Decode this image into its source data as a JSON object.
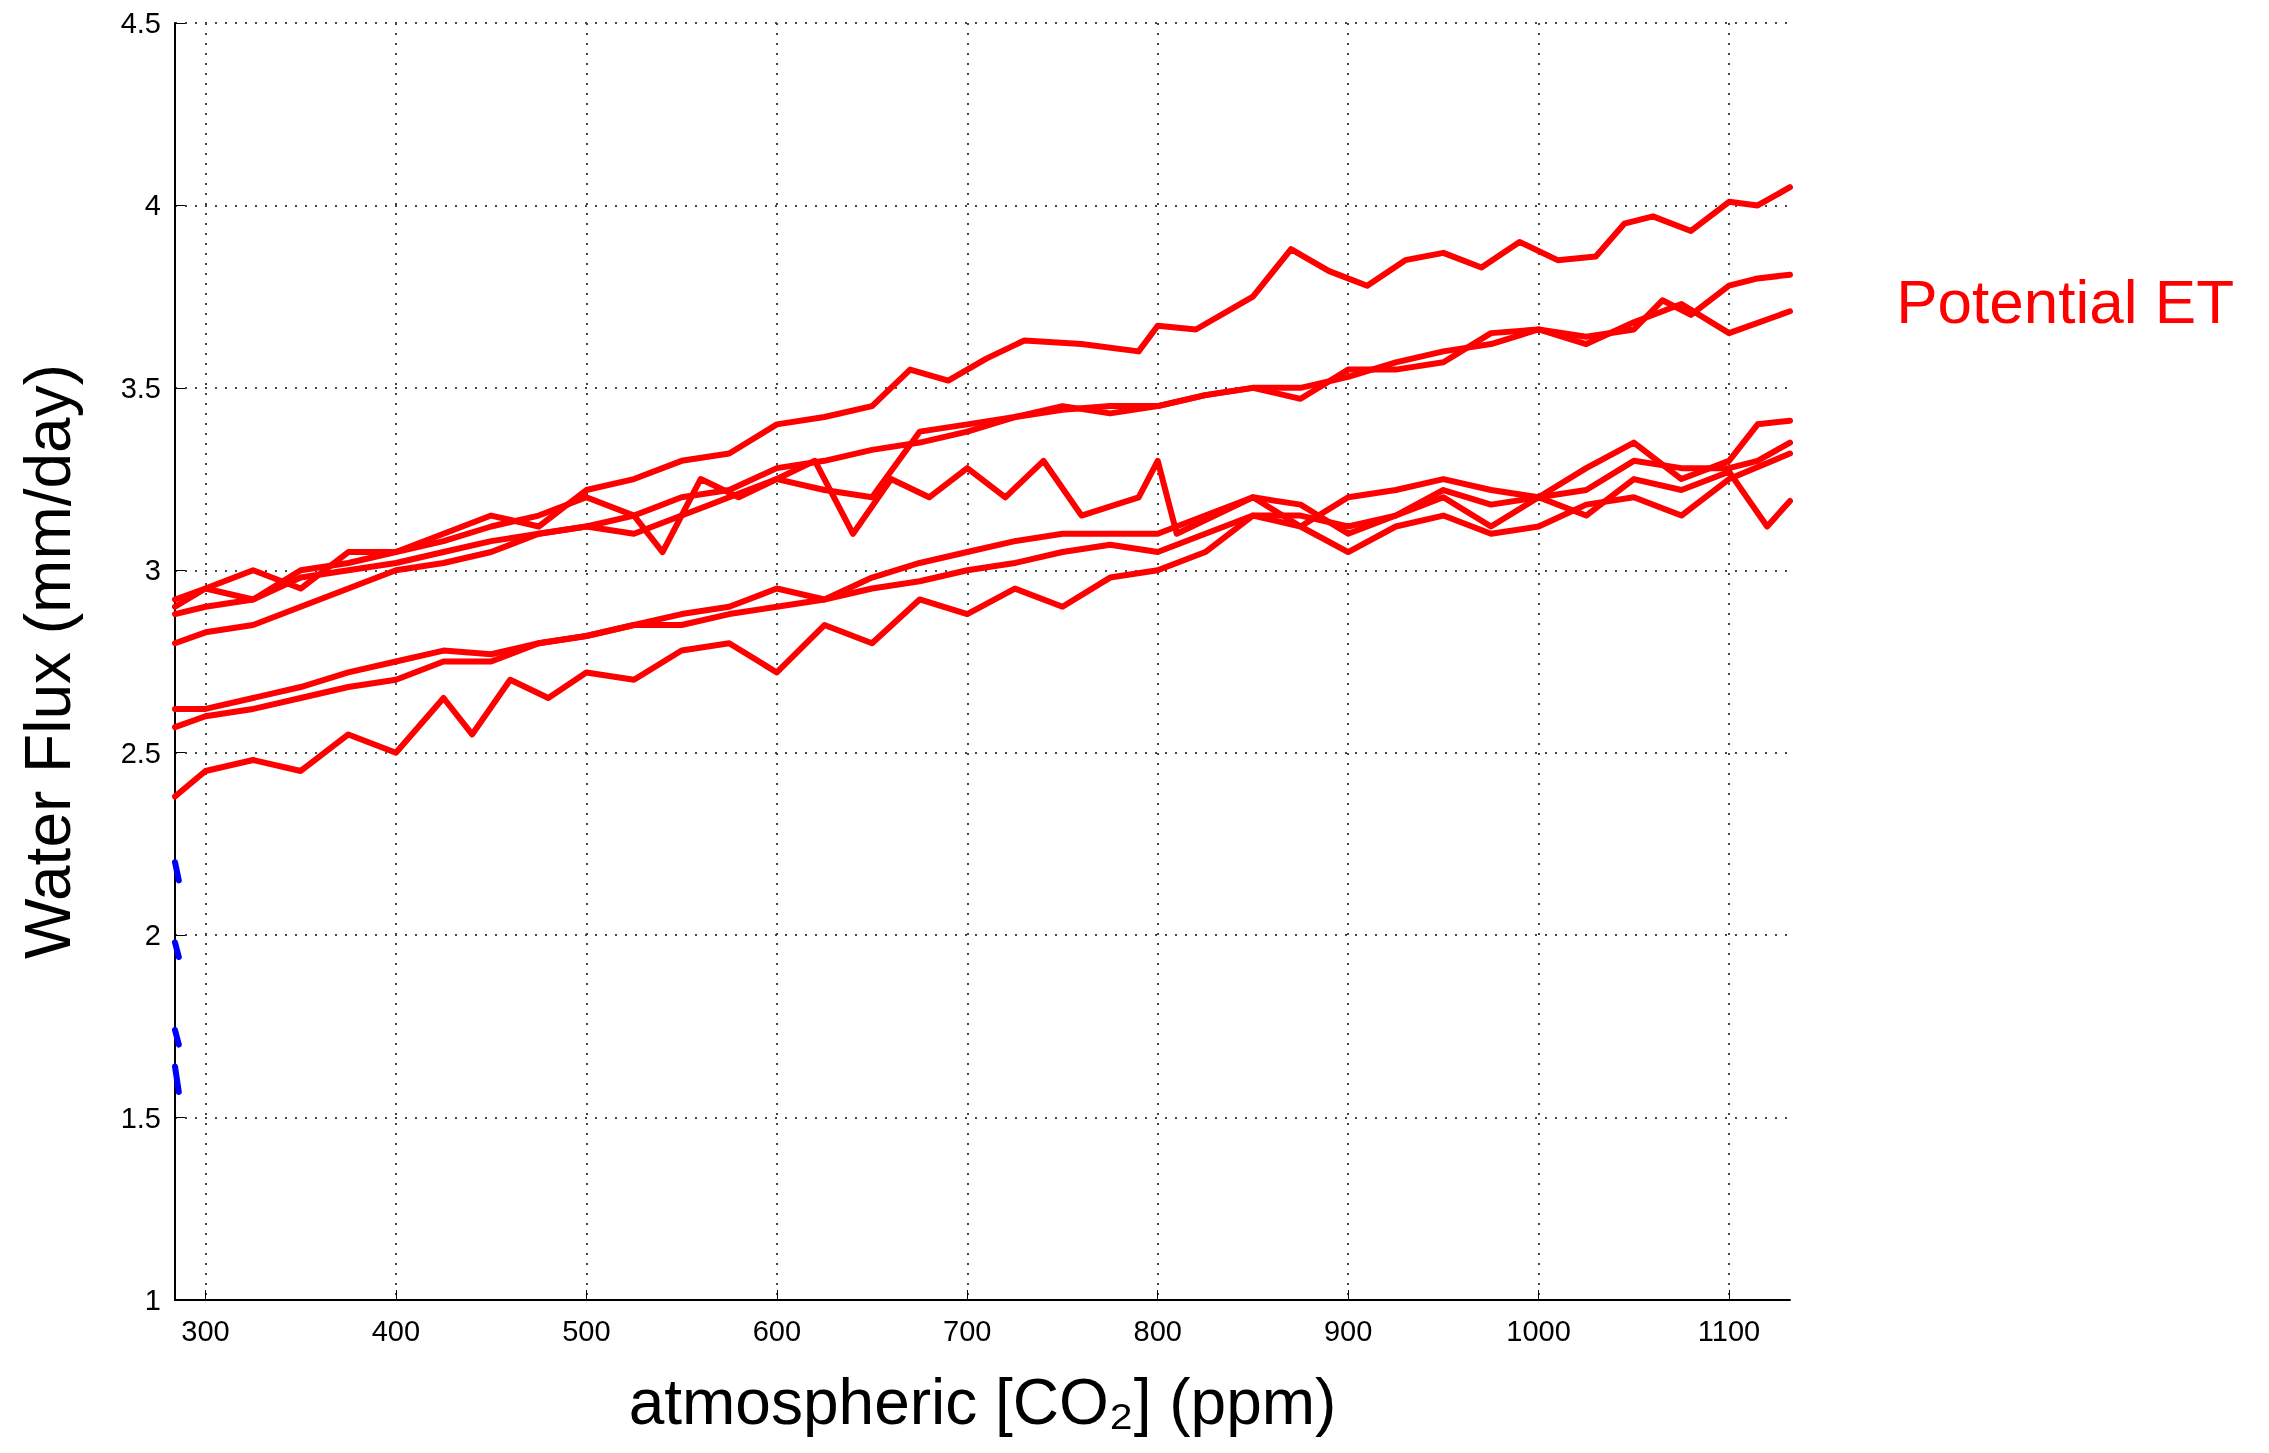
{
  "chart_data": {
    "type": "line",
    "xlabel": "atmospheric [CO₂] (ppm)",
    "ylabel": "Water Flux (mm/day)",
    "annotations": [
      "Potential ET"
    ],
    "xlim": [
      284,
      1132
    ],
    "xticks": [
      300,
      400,
      500,
      600,
      700,
      800,
      900,
      1000,
      1100
    ],
    "ylim": [
      1,
      4.5
    ],
    "yticks": [
      1,
      1.5,
      2,
      2.5,
      3,
      3.5,
      4,
      4.5
    ],
    "grid": true,
    "marker": "none",
    "line_style": "solid",
    "series": [
      {
        "color": "#ff0000",
        "x": [
          284,
          300,
          325,
          350,
          375,
          400,
          425,
          450,
          475,
          500,
          525,
          550,
          575,
          600,
          625,
          650,
          670,
          690,
          710,
          730,
          760,
          790,
          800,
          820,
          850,
          870,
          890,
          910,
          930,
          950,
          970,
          990,
          1010,
          1030,
          1045,
          1060,
          1080,
          1100,
          1115,
          1132
        ],
        "values": [
          2.92,
          2.95,
          3.0,
          2.95,
          3.05,
          3.05,
          3.1,
          3.15,
          3.12,
          3.22,
          3.25,
          3.3,
          3.32,
          3.4,
          3.42,
          3.45,
          3.55,
          3.52,
          3.58,
          3.63,
          3.62,
          3.6,
          3.67,
          3.66,
          3.75,
          3.88,
          3.82,
          3.78,
          3.85,
          3.87,
          3.83,
          3.9,
          3.85,
          3.86,
          3.95,
          3.97,
          3.93,
          4.01,
          4.0,
          4.05
        ]
      },
      {
        "color": "#ff0000",
        "x": [
          284,
          300,
          325,
          350,
          375,
          400,
          425,
          450,
          475,
          500,
          525,
          550,
          575,
          600,
          625,
          650,
          675,
          700,
          725,
          750,
          775,
          800,
          825,
          850,
          875,
          900,
          925,
          950,
          975,
          1000,
          1025,
          1050,
          1065,
          1080,
          1100,
          1115,
          1132
        ],
        "values": [
          2.88,
          2.9,
          2.92,
          2.98,
          3.0,
          3.02,
          3.05,
          3.08,
          3.1,
          3.12,
          3.15,
          3.2,
          3.22,
          3.28,
          3.3,
          3.33,
          3.35,
          3.38,
          3.42,
          3.44,
          3.45,
          3.45,
          3.48,
          3.5,
          3.5,
          3.53,
          3.57,
          3.6,
          3.62,
          3.66,
          3.64,
          3.66,
          3.74,
          3.7,
          3.78,
          3.8,
          3.81
        ]
      },
      {
        "color": "#ff0000",
        "x": [
          284,
          300,
          325,
          350,
          375,
          400,
          425,
          450,
          475,
          500,
          525,
          550,
          575,
          600,
          625,
          650,
          675,
          700,
          725,
          750,
          775,
          800,
          825,
          850,
          875,
          900,
          925,
          950,
          975,
          1000,
          1025,
          1050,
          1075,
          1100,
          1132
        ],
        "values": [
          2.8,
          2.83,
          2.85,
          2.9,
          2.95,
          3.0,
          3.02,
          3.05,
          3.1,
          3.12,
          3.1,
          3.15,
          3.2,
          3.25,
          3.22,
          3.2,
          3.38,
          3.4,
          3.42,
          3.45,
          3.43,
          3.45,
          3.48,
          3.5,
          3.47,
          3.55,
          3.55,
          3.57,
          3.65,
          3.66,
          3.62,
          3.68,
          3.73,
          3.65,
          3.71
        ]
      },
      {
        "color": "#ff0000",
        "x": [
          284,
          300,
          325,
          350,
          375,
          400,
          425,
          450,
          475,
          500,
          525,
          540,
          560,
          580,
          600,
          620,
          640,
          660,
          680,
          700,
          720,
          740,
          760,
          790,
          800,
          810,
          830,
          850,
          875,
          900,
          925,
          950,
          975,
          1000,
          1025,
          1050,
          1075,
          1100,
          1120,
          1132
        ],
        "values": [
          2.9,
          2.95,
          2.92,
          3.0,
          3.02,
          3.05,
          3.08,
          3.12,
          3.15,
          3.2,
          3.15,
          3.05,
          3.25,
          3.2,
          3.25,
          3.3,
          3.1,
          3.25,
          3.2,
          3.28,
          3.2,
          3.3,
          3.15,
          3.2,
          3.3,
          3.1,
          3.15,
          3.2,
          3.18,
          3.1,
          3.15,
          3.2,
          3.12,
          3.2,
          3.15,
          3.25,
          3.22,
          3.27,
          3.12,
          3.19
        ]
      },
      {
        "color": "#ff0000",
        "x": [
          284,
          300,
          325,
          350,
          375,
          400,
          425,
          450,
          475,
          500,
          525,
          550,
          575,
          600,
          625,
          650,
          675,
          700,
          725,
          750,
          775,
          800,
          825,
          850,
          875,
          900,
          925,
          950,
          975,
          1000,
          1025,
          1050,
          1075,
          1100,
          1115,
          1132
        ],
        "values": [
          2.62,
          2.62,
          2.65,
          2.68,
          2.72,
          2.75,
          2.78,
          2.77,
          2.8,
          2.82,
          2.85,
          2.88,
          2.9,
          2.95,
          2.92,
          2.98,
          3.02,
          3.05,
          3.08,
          3.1,
          3.1,
          3.1,
          3.15,
          3.2,
          3.12,
          3.2,
          3.22,
          3.25,
          3.22,
          3.2,
          3.28,
          3.35,
          3.25,
          3.3,
          3.4,
          3.41
        ]
      },
      {
        "color": "#ff0000",
        "x": [
          284,
          300,
          325,
          350,
          375,
          400,
          425,
          450,
          475,
          500,
          525,
          550,
          575,
          600,
          625,
          650,
          675,
          700,
          725,
          750,
          775,
          800,
          825,
          850,
          875,
          900,
          925,
          950,
          975,
          1000,
          1025,
          1050,
          1075,
          1100,
          1115,
          1132
        ],
        "values": [
          2.57,
          2.6,
          2.62,
          2.65,
          2.68,
          2.7,
          2.75,
          2.75,
          2.8,
          2.82,
          2.85,
          2.85,
          2.88,
          2.9,
          2.92,
          2.95,
          2.97,
          3.0,
          3.02,
          3.05,
          3.07,
          3.05,
          3.1,
          3.15,
          3.15,
          3.12,
          3.15,
          3.22,
          3.18,
          3.2,
          3.22,
          3.3,
          3.28,
          3.28,
          3.3,
          3.35
        ]
      },
      {
        "color": "#ff0000",
        "x": [
          284,
          300,
          325,
          350,
          375,
          400,
          425,
          440,
          460,
          480,
          500,
          525,
          550,
          575,
          600,
          625,
          650,
          675,
          700,
          725,
          750,
          775,
          800,
          825,
          850,
          875,
          900,
          925,
          950,
          975,
          1000,
          1025,
          1050,
          1075,
          1100,
          1132
        ],
        "values": [
          2.38,
          2.45,
          2.48,
          2.45,
          2.55,
          2.5,
          2.65,
          2.55,
          2.7,
          2.65,
          2.72,
          2.7,
          2.78,
          2.8,
          2.72,
          2.85,
          2.8,
          2.92,
          2.88,
          2.95,
          2.9,
          2.98,
          3.0,
          3.05,
          3.15,
          3.12,
          3.05,
          3.12,
          3.15,
          3.1,
          3.12,
          3.18,
          3.2,
          3.15,
          3.25,
          3.32
        ]
      },
      {
        "color": "#0000ff",
        "x": [
          284,
          286
        ],
        "values": [
          2.2,
          2.15
        ]
      },
      {
        "color": "#0000ff",
        "x": [
          284,
          286
        ],
        "values": [
          1.98,
          1.94
        ]
      },
      {
        "color": "#0000ff",
        "x": [
          284,
          286
        ],
        "values": [
          1.74,
          1.7
        ]
      },
      {
        "color": "#0000ff",
        "x": [
          284,
          286
        ],
        "values": [
          1.64,
          1.57
        ]
      }
    ]
  }
}
